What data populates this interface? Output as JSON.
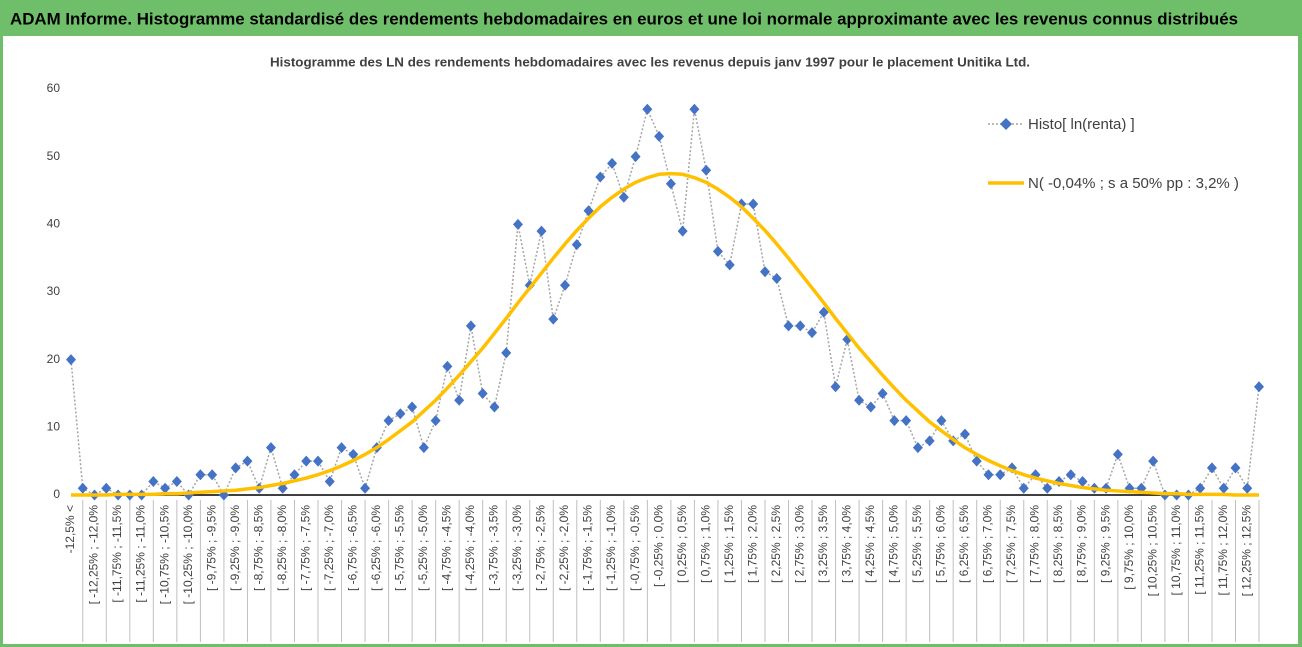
{
  "chart_data": {
    "type": "line",
    "header": "ADAM Informe. Histogramme standardisé des rendements hebdomadaires en euros et une loi normale approximante avec les revenus connus distribués",
    "title": "Histogramme des LN des rendements hebdomadaires avec les revenus depuis janv 1997 pour le placement Unitika Ltd.",
    "categories": [
      "-12,5% <",
      null,
      "[ -12,25% ; -12,0%",
      null,
      "[ -11,75% ; -11,5%",
      null,
      "[ -11,25% ; -11,0%",
      null,
      "[ -10,75% ; -10,5%",
      null,
      "[ -10,25% ; -10,0%",
      null,
      "[ -9,75% ; -9,5%",
      null,
      "[ -9,25% ; -9,0%",
      null,
      "[ -8,75% ; -8,5%",
      null,
      "[ -8,25% ; -8,0%",
      null,
      "[ -7,75% ; -7,5%",
      null,
      "[ -7,25% ; -7,0%",
      null,
      "[ -6,75% ; -6,5%",
      null,
      "[ -6,25% ; -6,0%",
      null,
      "[ -5,75% ; -5,5%",
      null,
      "[ -5,25% ; -5,0%",
      null,
      "[ -4,75% ; -4,5%",
      null,
      "[ -4,25% ; -4,0%",
      null,
      "[ -3,75% ; -3,5%",
      null,
      "[ -3,25% ; -3,0%",
      null,
      "[ -2,75% ; -2,5%",
      null,
      "[ -2,25% ; -2,0%",
      null,
      "[ -1,75% ; -1,5%",
      null,
      "[ -1,25% ; -1,0%",
      null,
      "[ -0,75% ; -0,5%",
      null,
      "[ -0,25% ; 0,0%",
      null,
      "[ 0,25% ; 0,5%",
      null,
      "[ 0,75% ; 1,0%",
      null,
      "[ 1,25% ; 1,5%",
      null,
      "[ 1,75% ; 2,0%",
      null,
      "[ 2,25% ; 2,5%",
      null,
      "[ 2,75% ; 3,0%",
      null,
      "[ 3,25% ; 3,5%",
      null,
      "[ 3,75% ; 4,0%",
      null,
      "[ 4,25% ; 4,5%",
      null,
      "[ 4,75% ; 5,0%",
      null,
      "[ 5,25% ; 5,5%",
      null,
      "[ 5,75% ; 6,0%",
      null,
      "[ 6,25% ; 6,5%",
      null,
      "[ 6,75% ; 7,0%",
      null,
      "[ 7,25% ; 7,5%",
      null,
      "[ 7,75% ; 8,0%",
      null,
      "[ 8,25% ; 8,5%",
      null,
      "[ 8,75% ; 9,0%",
      null,
      "[ 9,25% ; 9,5%",
      null,
      "[ 9,75% ; 10,0%",
      null,
      "[ 10,25% ; 10,5%",
      null,
      "[ 10,75% ; 11,0%",
      null,
      "[ 11,25% ; 11,5%",
      null,
      "[ 11,75% ; 12,0%",
      null,
      "[ 12,25% ; 12,5%",
      null
    ],
    "series": [
      {
        "name": "Histo[ ln(renta) ]",
        "color": "#4472c4",
        "line_color": "#a6a6a6",
        "line_style": "dotted",
        "marker": "diamond",
        "values": [
          20,
          1,
          0,
          1,
          0,
          0,
          0,
          2,
          1,
          2,
          0,
          3,
          3,
          0,
          4,
          5,
          1,
          7,
          1,
          3,
          5,
          5,
          2,
          7,
          6,
          1,
          7,
          11,
          12,
          13,
          7,
          11,
          19,
          14,
          25,
          15,
          13,
          21,
          40,
          31,
          39,
          26,
          31,
          37,
          42,
          47,
          49,
          44,
          50,
          57,
          53,
          46,
          39,
          57,
          48,
          36,
          34,
          43,
          43,
          33,
          32,
          25,
          25,
          24,
          27,
          16,
          23,
          14,
          13,
          15,
          11,
          11,
          7,
          8,
          11,
          8,
          9,
          5,
          3,
          3,
          4,
          1,
          3,
          1,
          2,
          3,
          2,
          1,
          1,
          6,
          1,
          1,
          5,
          0,
          0,
          0,
          1,
          4,
          1,
          4,
          1,
          16
        ]
      },
      {
        "name": "N( -0,04% ; s a 50% pp : 3,2% )",
        "color": "#ffc000",
        "line_style": "solid",
        "marker": "none",
        "values": [
          0,
          0,
          0,
          0,
          0.1,
          0.1,
          0.1,
          0.1,
          0.2,
          0.2,
          0.3,
          0.4,
          0.5,
          0.6,
          0.7,
          0.9,
          1.1,
          1.4,
          1.7,
          2.1,
          2.5,
          3.0,
          3.6,
          4.3,
          5.1,
          6.0,
          7.0,
          8.2,
          9.5,
          10.8,
          12.4,
          14.0,
          15.8,
          17.7,
          19.7,
          21.7,
          23.9,
          26.1,
          28.4,
          30.6,
          32.8,
          35.0,
          37.1,
          39.1,
          40.9,
          42.6,
          44.0,
          45.2,
          46.2,
          46.9,
          47.4,
          47.5,
          47.4,
          46.9,
          46.2,
          45.2,
          44.0,
          42.6,
          40.9,
          39.1,
          37.1,
          35.0,
          32.8,
          30.6,
          28.4,
          26.1,
          23.9,
          21.7,
          19.7,
          17.7,
          15.8,
          14.0,
          12.4,
          10.8,
          9.5,
          8.2,
          7.0,
          6.0,
          5.1,
          4.3,
          3.6,
          3.0,
          2.5,
          2.1,
          1.7,
          1.4,
          1.1,
          0.9,
          0.7,
          0.6,
          0.5,
          0.4,
          0.3,
          0.2,
          0.2,
          0.1,
          0.1,
          0.1,
          0.1,
          0,
          0,
          0
        ]
      }
    ],
    "ylim": [
      0,
      60
    ],
    "yticks": [
      0,
      10,
      20,
      30,
      40,
      50,
      60
    ],
    "grid": false,
    "legend": "upper right"
  }
}
